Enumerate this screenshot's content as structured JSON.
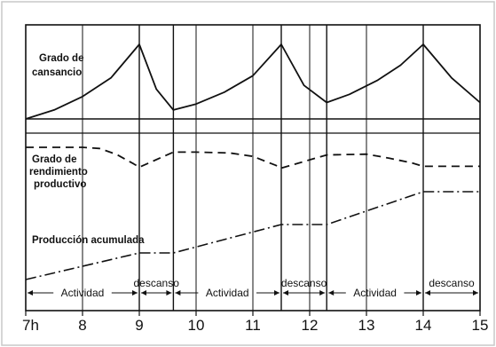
{
  "chart_data": {
    "type": "line",
    "x_unit": "h",
    "x_ticks": [
      {
        "value": 7,
        "label": "7h"
      },
      {
        "value": 8,
        "label": "8"
      },
      {
        "value": 9,
        "label": "9"
      },
      {
        "value": 10,
        "label": "10"
      },
      {
        "value": 11,
        "label": "11"
      },
      {
        "value": 12,
        "label": "12"
      },
      {
        "value": 13,
        "label": "13"
      },
      {
        "value": 14,
        "label": "14"
      },
      {
        "value": 15,
        "label": "15"
      }
    ],
    "xlim": [
      7,
      15
    ],
    "panel_labels": {
      "fatigue": [
        "Grado de",
        "cansancio"
      ],
      "performance": [
        "Grado de",
        "rendimiento",
        "productivo"
      ],
      "production": [
        "Producción acumulada"
      ]
    },
    "periods": [
      {
        "label": "Actividad",
        "start": 7,
        "end": 9
      },
      {
        "label": "descanso",
        "start": 9,
        "end": 9.6
      },
      {
        "label": "Actividad",
        "start": 9.6,
        "end": 11.5
      },
      {
        "label": "descanso",
        "start": 11.5,
        "end": 12.3
      },
      {
        "label": "Actividad",
        "start": 12.3,
        "end": 14
      },
      {
        "label": "descanso",
        "start": 14,
        "end": 15
      }
    ],
    "phase_boundaries": [
      9,
      9.6,
      11.5,
      12.3,
      14
    ],
    "series": [
      {
        "name": "Grado de cansancio",
        "style": "solid",
        "x": [
          7,
          7.5,
          8,
          8.5,
          9,
          9.3,
          9.6,
          10,
          10.5,
          11,
          11.5,
          11.9,
          12.3,
          12.7,
          13.2,
          13.6,
          14,
          14.5,
          15
        ],
        "y": [
          0,
          0.12,
          0.3,
          0.55,
          1.0,
          0.4,
          0.12,
          0.2,
          0.36,
          0.58,
          1.0,
          0.45,
          0.22,
          0.33,
          0.52,
          0.72,
          1.0,
          0.55,
          0.22
        ]
      },
      {
        "name": "Grado de rendimiento productivo",
        "style": "dashed",
        "x": [
          7,
          8,
          8.3,
          8.6,
          8.9,
          9,
          9.6,
          10,
          10.6,
          11,
          11.4,
          11.5,
          12.3,
          13,
          13.4,
          13.8,
          14,
          15
        ],
        "y": [
          1.0,
          1.0,
          0.96,
          0.75,
          0.42,
          0.3,
          0.83,
          0.83,
          0.8,
          0.68,
          0.37,
          0.27,
          0.73,
          0.76,
          0.62,
          0.45,
          0.33,
          0.33
        ]
      },
      {
        "name": "Producción acumulada",
        "style": "dashdot",
        "x": [
          7,
          9,
          9.6,
          11.5,
          12.3,
          14,
          15
        ],
        "y": [
          0,
          0.3,
          0.3,
          0.62,
          0.62,
          0.99,
          0.99
        ]
      }
    ],
    "grid": true
  }
}
